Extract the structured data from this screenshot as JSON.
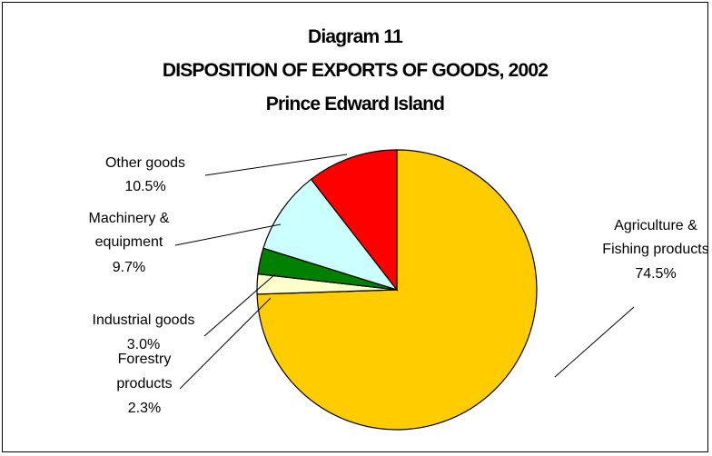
{
  "chart_data": {
    "type": "pie",
    "title": [
      "Diagram 11",
      "DISPOSITION OF EXPORTS OF GOODS, 2002",
      "Prince Edward Island"
    ],
    "slices": [
      {
        "label": [
          "Agriculture &",
          "Fishing products"
        ],
        "value": 74.5,
        "value_label": "74.5%",
        "color": "#FFCC00"
      },
      {
        "label": [
          "Forestry",
          "products"
        ],
        "value": 2.3,
        "value_label": "2.3%",
        "color": "#FFFFCC"
      },
      {
        "label": [
          "Industrial goods"
        ],
        "value": 3.0,
        "value_label": "3.0%",
        "color": "#008000"
      },
      {
        "label": [
          "Machinery &",
          "equipment"
        ],
        "value": 9.7,
        "value_label": "9.7%",
        "color": "#CCFFFF"
      },
      {
        "label": [
          "Other goods"
        ],
        "value": 10.5,
        "value_label": "10.5%",
        "color": "#FF0000"
      }
    ],
    "start_angle_deg": 0,
    "direction": "clockwise-from-top",
    "legend": "none",
    "border_color": "#000000"
  }
}
